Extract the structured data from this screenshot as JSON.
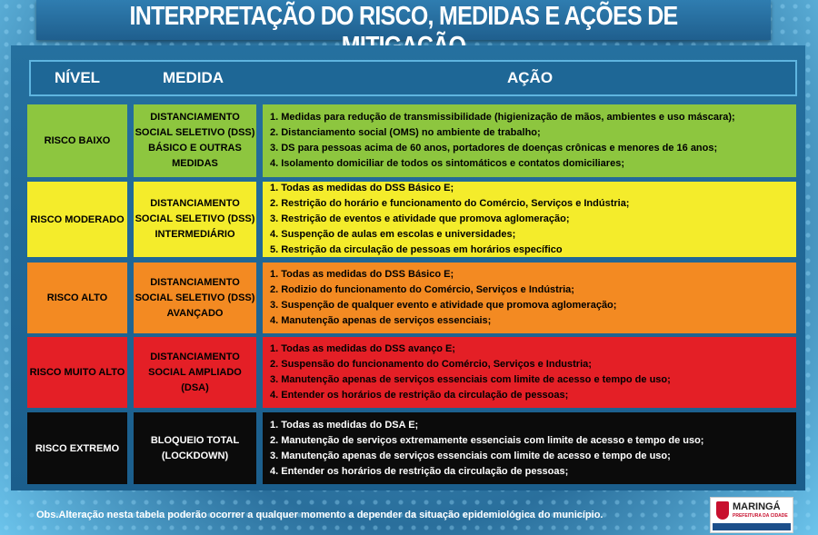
{
  "title": "INTERPRETAÇÃO DO RISCO, MEDIDAS E AÇÕES DE MITIGAÇÃO",
  "header": {
    "level": "NÍVEL",
    "measure": "MEDIDA",
    "action": "AÇÃO"
  },
  "rows": [
    {
      "level": "RISCO BAIXO",
      "measure": "DISTANCIAMENTO SOCIAL SELETIVO (DSS) BÁSICO E OUTRAS MEDIDAS",
      "color": "#8dc63f",
      "text_color": "#000000",
      "actions": [
        "1. Medidas para redução de transmissibilidade (higienização de mãos, ambientes e uso máscara);",
        "2. Distanciamento social (OMS) no ambiente de trabalho;",
        "3. DS para pessoas acima de 60 anos, portadores de doenças crônicas e menores de 16 anos;",
        "4. Isolamento domiciliar de todos os sintomáticos e contatos domiciliares;"
      ]
    },
    {
      "level": "RISCO MODERADO",
      "measure": "DISTANCIAMENTO SOCIAL SELETIVO (DSS) INTERMEDIÁRIO",
      "color": "#f4ec2b",
      "text_color": "#000000",
      "actions": [
        "1. Todas as medidas do DSS Básico E;",
        "2. Restrição do horário e funcionamento do Comércio, Serviços e Indústria;",
        "3. Restrição de eventos e atividade que promova aglomeração;",
        "4. Suspenção de aulas em escolas e universidades;",
        "5. Restrição da circulação de pessoas em horários específico"
      ]
    },
    {
      "level": "RISCO ALTO",
      "measure": "DISTANCIAMENTO SOCIAL SELETIVO (DSS) AVANÇADO",
      "color": "#f38a22",
      "text_color": "#000000",
      "actions": [
        "1. Todas as medidas do DSS Básico E;",
        "2. Rodizio do funcionamento do Comércio, Serviços e Indústria;",
        "3. Suspenção de qualquer evento e atividade que promova aglomeração;",
        "4. Manutenção apenas de serviços essenciais;"
      ]
    },
    {
      "level": "RISCO MUITO ALTO",
      "measure": "DISTANCIAMENTO SOCIAL AMPLIADO (DSA)",
      "color": "#e41f26",
      "text_color": "#000000",
      "actions": [
        "1. Todas as medidas do DSS avanço E;",
        "2. Suspensão do funcionamento do Comércio, Serviços e Industria;",
        "3. Manutenção apenas de serviços essenciais com limite de acesso e tempo de uso;",
        "4. Entender os horários de restrição da circulação de pessoas;"
      ]
    },
    {
      "level": "RISCO EXTREMO",
      "measure": "BLOQUEIO TOTAL (LOCKDOWN)",
      "color": "#0b0b0b",
      "text_color": "#ffffff",
      "actions": [
        "1. Todas as medidas do DSA E;",
        "2. Manutenção de serviços extremamente essenciais com limite de acesso e  tempo de uso;",
        "3. Manutenção apenas de serviços essenciais com limite de acesso e tempo de uso;",
        "4. Entender os horários de restrição da circulação de pessoas;"
      ]
    }
  ],
  "note": "Obs.Alteração nesta tabela poderão ocorrer a qualquer momento a depender da situação epidemiológica do município.",
  "logo": {
    "name": "MARINGÁ",
    "subtitle": "PREFEITURA DA CIDADE"
  }
}
